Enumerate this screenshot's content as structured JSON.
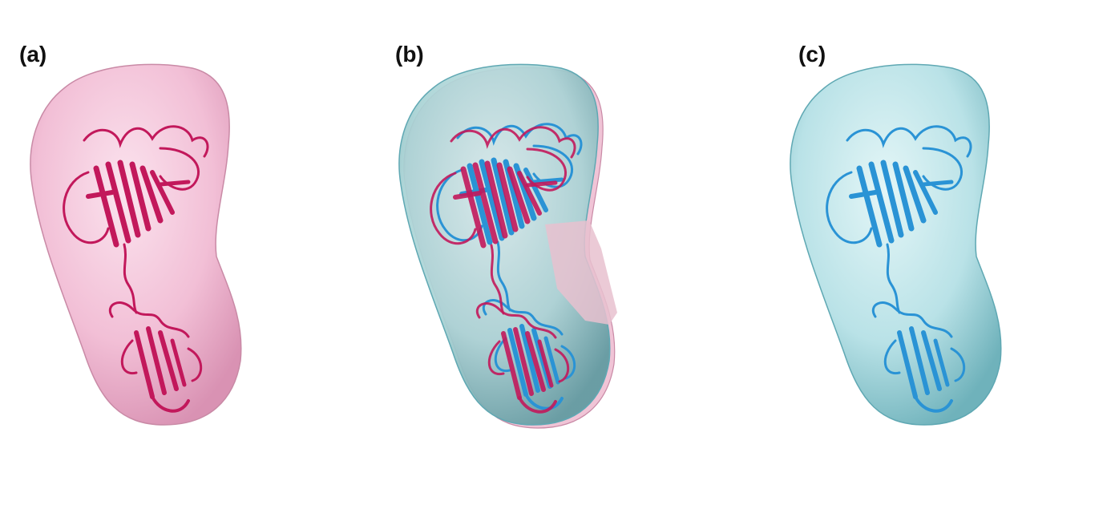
{
  "figure": {
    "panels": [
      {
        "label": "(a)",
        "surface": "pink",
        "ribbons": [
          "crimson"
        ]
      },
      {
        "label": "(b)",
        "surface": "overlay",
        "ribbons": [
          "crimson",
          "blue"
        ]
      },
      {
        "label": "(c)",
        "surface": "cyan",
        "ribbons": [
          "blue"
        ]
      }
    ]
  },
  "colors": {
    "pink_surface": "#f2bfd6",
    "pink_edge": "#c98aa6",
    "cyan_surface": "#bfe6ea",
    "cyan_edge": "#5fa8b3",
    "crimson_ribbon": "#c2185b",
    "blue_ribbon": "#2a93d5",
    "background": "#ffffff"
  }
}
